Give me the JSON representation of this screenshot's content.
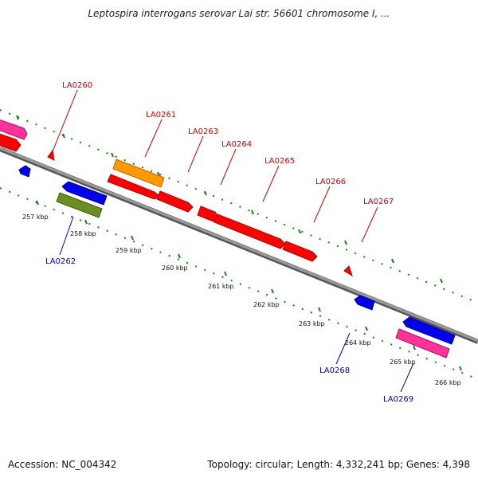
{
  "header": {
    "title": "Leptospira interrogans serovar Lai str. 56601 chromosome I, ..."
  },
  "footer": {
    "accession": "Accession: NC_004342",
    "summary": "Topology: circular; Length: 4,332,241 bp; Genes: 4,398"
  },
  "colors": {
    "forward_label": "#cc0000",
    "reverse_label": "#0000bb",
    "backbone": "#888888",
    "ticks": "#1a7f1a"
  },
  "scale_labels": [
    "257 kbp",
    "258 kbp",
    "259 kbp",
    "260 kbp",
    "261 kbp",
    "262 kbp",
    "263 kbp",
    "264 kbp",
    "265 kbp",
    "266 kbp"
  ],
  "forward_genes": [
    "LA0260",
    "LA0261",
    "LA0263",
    "LA0264",
    "LA0265",
    "LA0266",
    "LA0267"
  ],
  "reverse_genes": [
    "LA0262",
    "LA0268",
    "LA0269"
  ]
}
